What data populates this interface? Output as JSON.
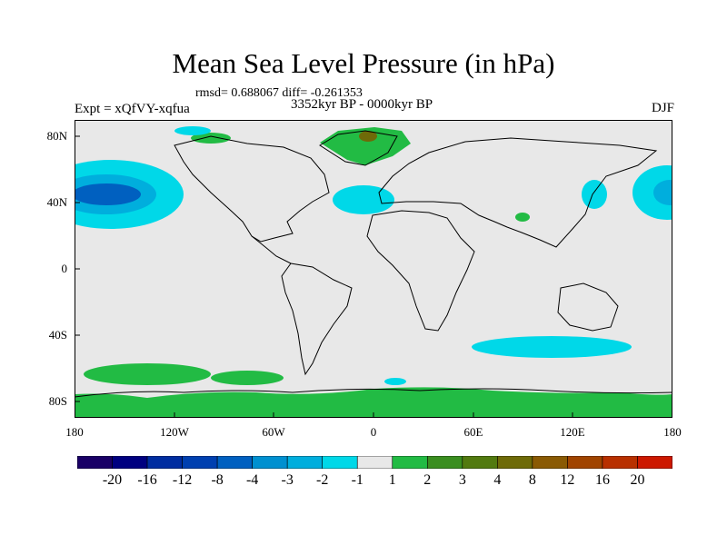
{
  "title": "Mean Sea Level Pressure (in hPa)",
  "stats_line": "rmsd= 0.688067 diff= -0.261353",
  "period_line": "3352kyr BP - 0000kyr BP",
  "experiment": "Expt = xQfVY-xqfua",
  "season": "DJF",
  "lat_labels": [
    "80N",
    "40N",
    "0",
    "40S",
    "80S"
  ],
  "lon_labels": [
    "180",
    "120W",
    "60W",
    "0",
    "60E",
    "120E",
    "180"
  ],
  "colorbar": {
    "colors": [
      "#1a0066",
      "#000080",
      "#002da0",
      "#0040b0",
      "#0060c0",
      "#0090d0",
      "#00aedd",
      "#00d8e8",
      "#e8e8e8",
      "#22bb44",
      "#3a8e20",
      "#527a10",
      "#6e6a08",
      "#8a5a04",
      "#a04400",
      "#b83000",
      "#cc1800"
    ],
    "labels": [
      "-20",
      "-16",
      "-12",
      "-8",
      "-4",
      "-3",
      "-2",
      "-1",
      "1",
      "2",
      "3",
      "4",
      "8",
      "12",
      "16",
      "20"
    ]
  },
  "colors": {
    "ocean_background": "#e8e8e8",
    "coastline": "#000000"
  }
}
